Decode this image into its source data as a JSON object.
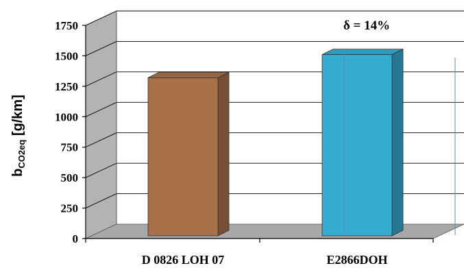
{
  "chart_data": {
    "type": "bar",
    "style": "3d",
    "categories": [
      "D 0826 LOH 07",
      "E2866DOH"
    ],
    "values": [
      1320,
      1510
    ],
    "ylabel": "b",
    "ylabel_subscript": "CO2eq",
    "ylabel_unit": " [g/km]",
    "ylim": [
      0,
      1750
    ],
    "yticks": [
      "0",
      "250",
      "500",
      "750",
      "1000",
      "1250",
      "1500",
      "1750"
    ],
    "grid": true,
    "annotation": "δ = 14%",
    "colors": {
      "bar_1": "#a9714a",
      "bar_2": "#35abd2",
      "side_wall": "#b3b3b3",
      "floor": "#a8a8a8",
      "gridline": "#000000"
    }
  }
}
